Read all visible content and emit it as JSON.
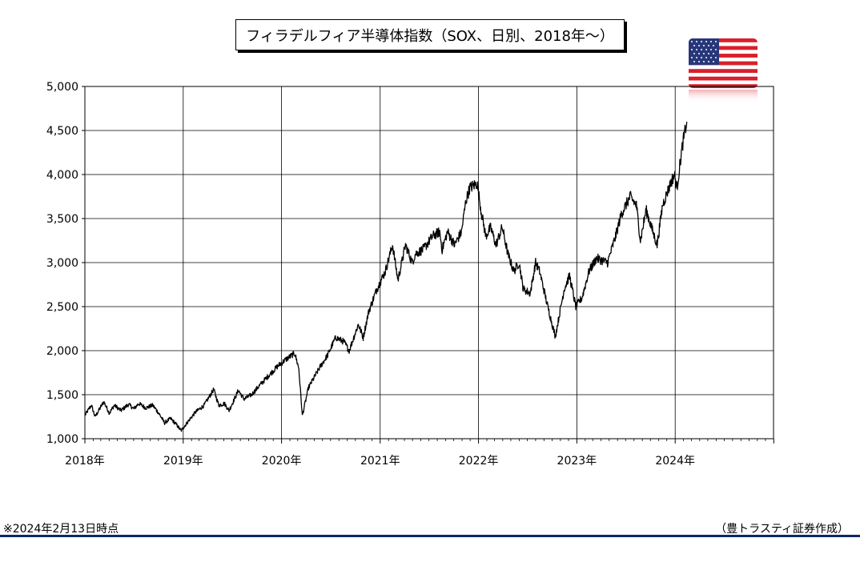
{
  "title": "フィラデルフィア半導体指数（SOX、日別、2018年～）",
  "flag_icon": "us-flag-icon",
  "note_left": "※2024年2月13日時点",
  "note_right": "（豊トラスティ証券作成）",
  "colors": {
    "line": "#000000",
    "grid": "#000000",
    "rule": "#0c2a66"
  },
  "chart_data": {
    "type": "line",
    "title": "フィラデルフィア半導体指数（SOX、日別、2018年～）",
    "xlabel": "",
    "ylabel": "",
    "x_tick_labels": [
      "2018年",
      "2019年",
      "2020年",
      "2021年",
      "2022年",
      "2023年",
      "2024年"
    ],
    "y_tick_labels": [
      "1,000",
      "1,500",
      "2,000",
      "2,500",
      "3,000",
      "3,500",
      "4,000",
      "4,500",
      "5,000"
    ],
    "ylim": [
      1000,
      5000
    ],
    "xlim": [
      "2018-01-01",
      "2024-12-31"
    ],
    "grid": true,
    "legend": "none",
    "series": [
      {
        "x": [
          "2018-01-02",
          "2018-01-25",
          "2018-02-08",
          "2018-03-12",
          "2018-04-02",
          "2018-04-20",
          "2018-05-15",
          "2018-06-12",
          "2018-07-02",
          "2018-07-20",
          "2018-08-15",
          "2018-09-10",
          "2018-10-02",
          "2018-10-24",
          "2018-11-15",
          "2018-12-07",
          "2018-12-24",
          "2019-01-15",
          "2019-02-15",
          "2019-03-20",
          "2019-04-24",
          "2019-05-13",
          "2019-06-03",
          "2019-06-20",
          "2019-07-25",
          "2019-08-14",
          "2019-09-12",
          "2019-10-10",
          "2019-11-15",
          "2019-12-20",
          "2020-01-17",
          "2020-02-19",
          "2020-03-05",
          "2020-03-18",
          "2020-04-10",
          "2020-05-20",
          "2020-06-20",
          "2020-07-20",
          "2020-08-20",
          "2020-09-08",
          "2020-10-12",
          "2020-10-30",
          "2020-11-20",
          "2020-12-20",
          "2021-01-20",
          "2021-02-16",
          "2021-03-08",
          "2021-04-05",
          "2021-04-30",
          "2021-05-12",
          "2021-06-10",
          "2021-07-15",
          "2021-08-10",
          "2021-08-19",
          "2021-09-08",
          "2021-10-04",
          "2021-10-30",
          "2021-11-15",
          "2021-11-30",
          "2021-12-27",
          "2022-01-10",
          "2022-01-28",
          "2022-02-15",
          "2022-03-07",
          "2022-03-30",
          "2022-04-20",
          "2022-05-12",
          "2022-06-01",
          "2022-06-16",
          "2022-07-12",
          "2022-08-01",
          "2022-08-16",
          "2022-09-15",
          "2022-10-13",
          "2022-11-15",
          "2022-12-05",
          "2022-12-28",
          "2023-01-20",
          "2023-02-15",
          "2023-03-15",
          "2023-04-25",
          "2023-05-25",
          "2023-06-15",
          "2023-07-18",
          "2023-08-10",
          "2023-08-25",
          "2023-09-15",
          "2023-10-10",
          "2023-10-26",
          "2023-11-15",
          "2023-12-15",
          "2023-12-29",
          "2024-01-08",
          "2024-01-24",
          "2024-02-01",
          "2024-02-13"
        ],
        "y": [
          1270,
          1380,
          1250,
          1420,
          1290,
          1380,
          1320,
          1390,
          1340,
          1400,
          1350,
          1380,
          1290,
          1180,
          1230,
          1160,
          1090,
          1180,
          1300,
          1380,
          1560,
          1380,
          1400,
          1320,
          1550,
          1450,
          1500,
          1600,
          1720,
          1830,
          1900,
          1970,
          1800,
          1260,
          1580,
          1800,
          1950,
          2150,
          2100,
          2000,
          2300,
          2150,
          2450,
          2700,
          2900,
          3200,
          2800,
          3200,
          3000,
          3100,
          3150,
          3300,
          3350,
          3150,
          3350,
          3200,
          3350,
          3700,
          3850,
          3900,
          3600,
          3300,
          3400,
          3200,
          3400,
          3100,
          2900,
          3000,
          2700,
          2650,
          3000,
          2900,
          2500,
          2160,
          2700,
          2850,
          2500,
          2600,
          2900,
          3050,
          3000,
          3300,
          3550,
          3750,
          3650,
          3250,
          3600,
          3350,
          3200,
          3650,
          3900,
          4000,
          3850,
          4250,
          4400,
          4600
        ]
      }
    ]
  }
}
